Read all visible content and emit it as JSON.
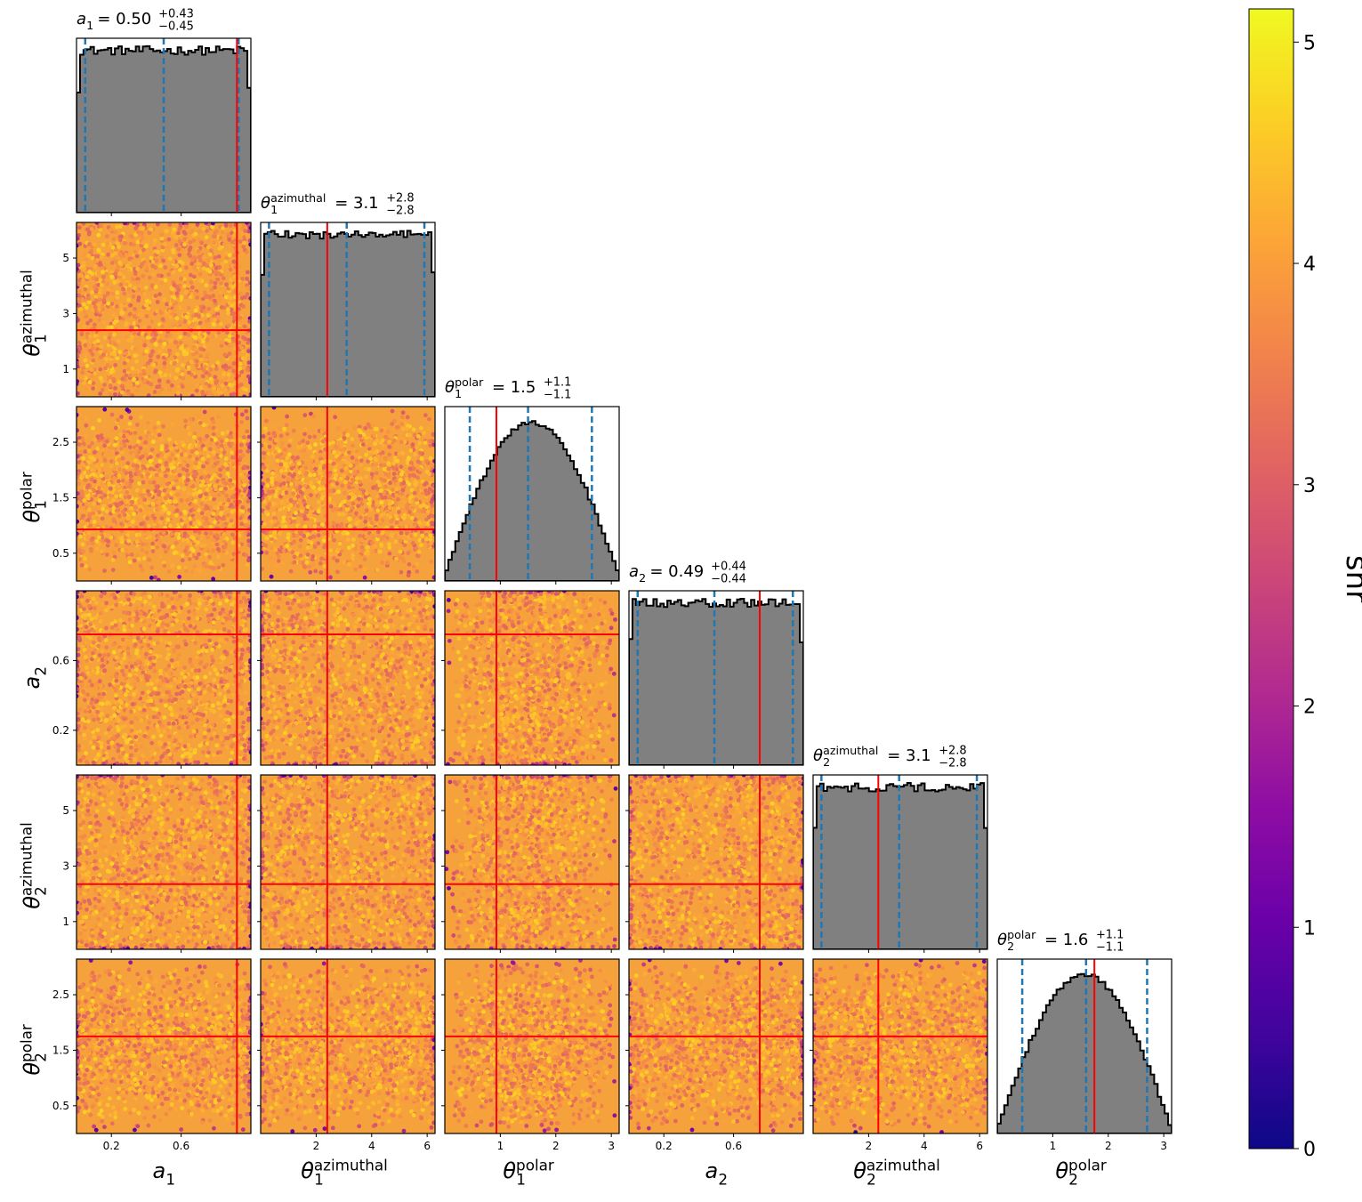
{
  "chart_data": {
    "type": "corner",
    "parameters": [
      {
        "symbol": "a",
        "sub": "1",
        "sup": "",
        "range": [
          0.0,
          1.0
        ],
        "ticks": [
          "0.2",
          "0.6"
        ],
        "tick_values": [
          0.2,
          0.6
        ],
        "truth": 0.92,
        "summary": {
          "median": "0.50",
          "plus": "+0.43",
          "minus": "−0.45"
        },
        "quantiles": [
          0.05,
          0.5,
          0.93
        ],
        "hist_shape": "uniform"
      },
      {
        "symbol": "θ",
        "sub": "1",
        "sup": "azimuthal",
        "range": [
          0.0,
          6.283
        ],
        "ticks": [
          "2",
          "4",
          "6"
        ],
        "tick_values": [
          2,
          4,
          6
        ],
        "truth": 2.4,
        "summary": {
          "median": "3.1",
          "plus": "+2.8",
          "minus": "−2.8"
        },
        "quantiles": [
          0.3,
          3.1,
          5.9
        ],
        "hist_shape": "uniform"
      },
      {
        "symbol": "θ",
        "sub": "1",
        "sup": "polar",
        "range": [
          0.0,
          3.14159
        ],
        "ticks": [
          "1",
          "2",
          "3"
        ],
        "tick_values": [
          1,
          2,
          3
        ],
        "truth": 0.93,
        "summary": {
          "median": "1.5",
          "plus": "+1.1",
          "minus": "−1.1"
        },
        "quantiles": [
          0.45,
          1.5,
          2.65
        ],
        "hist_shape": "sine"
      },
      {
        "symbol": "a",
        "sub": "2",
        "sup": "",
        "range": [
          0.0,
          1.0
        ],
        "ticks": [
          "0.2",
          "0.6"
        ],
        "tick_values": [
          0.2,
          0.6
        ],
        "truth": 0.75,
        "summary": {
          "median": "0.49",
          "plus": "+0.44",
          "minus": "−0.44"
        },
        "quantiles": [
          0.05,
          0.49,
          0.94
        ],
        "hist_shape": "uniform"
      },
      {
        "symbol": "θ",
        "sub": "2",
        "sup": "azimuthal",
        "range": [
          0.0,
          6.283
        ],
        "ticks": [
          "2",
          "4",
          "6"
        ],
        "tick_values": [
          2,
          4,
          6
        ],
        "truth": 2.35,
        "summary": {
          "median": "3.1",
          "plus": "+2.8",
          "minus": "−2.8"
        },
        "quantiles": [
          0.3,
          3.1,
          5.9
        ],
        "hist_shape": "uniform"
      },
      {
        "symbol": "θ",
        "sub": "2",
        "sup": "polar",
        "range": [
          0.0,
          3.14159
        ],
        "ticks": [
          "1",
          "2",
          "3"
        ],
        "tick_values": [
          1,
          2,
          3
        ],
        "truth": 1.75,
        "summary": {
          "median": "1.6",
          "plus": "+1.1",
          "minus": "−1.1"
        },
        "quantiles": [
          0.45,
          1.6,
          2.7
        ],
        "hist_shape": "sine"
      }
    ],
    "y_ticks": [
      null,
      {
        "labels": [
          "1",
          "3",
          "5"
        ],
        "values": [
          1,
          3,
          5
        ]
      },
      {
        "labels": [
          "0.5",
          "1.5",
          "2.5"
        ],
        "values": [
          0.5,
          1.5,
          2.5
        ]
      },
      {
        "labels": [
          "0.2",
          "0.6"
        ],
        "values": [
          0.2,
          0.6
        ]
      },
      {
        "labels": [
          "1",
          "3",
          "5"
        ],
        "values": [
          1,
          3,
          5
        ]
      },
      {
        "labels": [
          "0.5",
          "1.5",
          "2.5"
        ],
        "values": [
          0.5,
          1.5,
          2.5
        ]
      }
    ],
    "colorbar": {
      "label": "snr",
      "range": [
        0,
        5.15
      ],
      "ticks": [
        "0",
        "1",
        "2",
        "3",
        "4",
        "5"
      ],
      "tick_values": [
        0,
        1,
        2,
        3,
        4,
        5
      ],
      "colormap": "plasma"
    },
    "colors": {
      "hist_fill": "#808080",
      "hist_edge": "#000000",
      "quantile_line": "#1f77b4",
      "truth_line": "#ff0000"
    }
  }
}
